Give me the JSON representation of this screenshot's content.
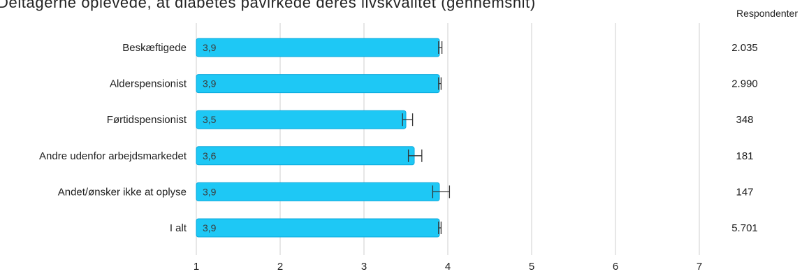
{
  "chart_data": {
    "type": "bar",
    "orientation": "horizontal",
    "title": "Deltagerne oplevede, at diabetes påvirkede deres livskvalitet (gennemsnit)",
    "categories": [
      "Beskæftigede",
      "Alderspensionist",
      "Førtidspensionist",
      "Andre udenfor arbejdsmarkedet",
      "Andet/ønsker ikke at oplyse",
      "I alt"
    ],
    "values": [
      3.9,
      3.9,
      3.5,
      3.6,
      3.9,
      3.9
    ],
    "value_labels": [
      "3,9",
      "3,9",
      "3,5",
      "3,6",
      "3,9",
      "3,9"
    ],
    "error_low": [
      3.89,
      3.89,
      3.46,
      3.53,
      3.82,
      3.89
    ],
    "error_high": [
      3.93,
      3.92,
      3.58,
      3.69,
      4.02,
      3.92
    ],
    "respondents_header": "Respondenter",
    "respondents": [
      "2.035",
      "2.990",
      "348",
      "181",
      "147",
      "5.701"
    ],
    "xticks": [
      "1",
      "2",
      "3",
      "4",
      "5",
      "6",
      "7"
    ],
    "xlim": [
      1,
      7
    ],
    "grid": true,
    "colors": {
      "bar": "#1ec8f5",
      "bar_stroke": "#0aa9dc",
      "grid": "#cfcfcf",
      "error": "#333333"
    }
  }
}
